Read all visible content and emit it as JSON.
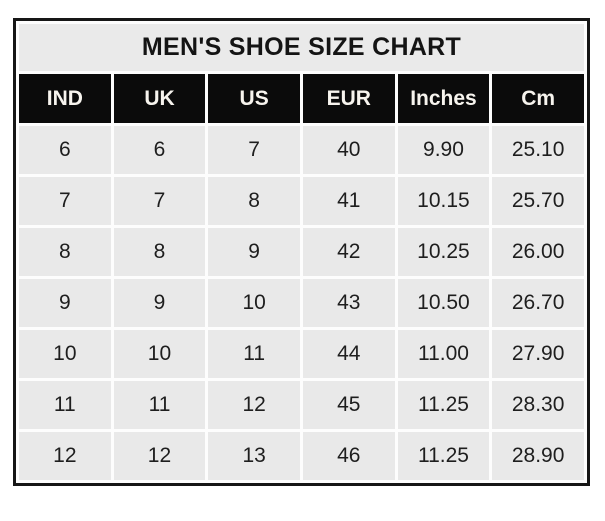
{
  "chart_data": {
    "type": "table",
    "title": "MEN'S SHOE SIZE CHART",
    "columns": [
      "IND",
      "UK",
      "US",
      "EUR",
      "Inches",
      "Cm"
    ],
    "rows": [
      [
        "6",
        "6",
        "7",
        "40",
        "9.90",
        "25.10"
      ],
      [
        "7",
        "7",
        "8",
        "41",
        "10.15",
        "25.70"
      ],
      [
        "8",
        "8",
        "9",
        "42",
        "10.25",
        "26.00"
      ],
      [
        "9",
        "9",
        "10",
        "43",
        "10.50",
        "26.70"
      ],
      [
        "10",
        "10",
        "11",
        "44",
        "11.00",
        "27.90"
      ],
      [
        "11",
        "11",
        "12",
        "45",
        "11.25",
        "28.30"
      ],
      [
        "12",
        "12",
        "13",
        "46",
        "11.25",
        "28.90"
      ]
    ]
  },
  "colors": {
    "title_bg": "#eaeaea",
    "header_bg": "#0b0b0b",
    "header_text": "#f7f4ee",
    "cell_bg": "#e9e9e9",
    "cell_text": "#1e1e1e",
    "border": "#161616",
    "gridline": "#fdfdfd",
    "page_bg": "#ffffff"
  }
}
